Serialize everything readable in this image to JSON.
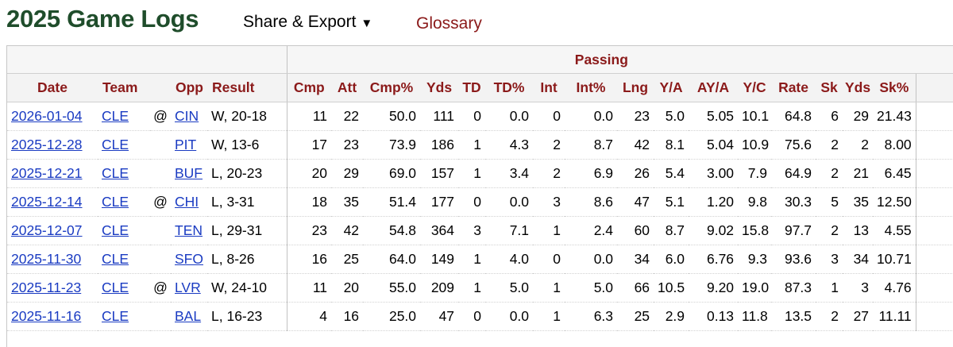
{
  "page": {
    "title": "2025 Game Logs",
    "share_export_label": "Share & Export",
    "share_caret": "▼",
    "glossary_label": "Glossary"
  },
  "table": {
    "group_label": "Passing",
    "columns": [
      "Date",
      "Team",
      "",
      "Opp",
      "Result",
      "Cmp",
      "Att",
      "Cmp%",
      "Yds",
      "TD",
      "TD%",
      "Int",
      "Int%",
      "Lng",
      "Y/A",
      "AY/A",
      "Y/C",
      "Rate",
      "Sk",
      "Yds",
      "Sk%"
    ],
    "rows": [
      [
        "2026-01-04",
        "CLE",
        "@",
        "CIN",
        "W, 20-18",
        "11",
        "22",
        "50.0",
        "111",
        "0",
        "0.0",
        "0",
        "0.0",
        "23",
        "5.0",
        "5.05",
        "10.1",
        "64.8",
        "6",
        "29",
        "21.43"
      ],
      [
        "2025-12-28",
        "CLE",
        "",
        "PIT",
        "W, 13-6",
        "17",
        "23",
        "73.9",
        "186",
        "1",
        "4.3",
        "2",
        "8.7",
        "42",
        "8.1",
        "5.04",
        "10.9",
        "75.6",
        "2",
        "2",
        "8.00"
      ],
      [
        "2025-12-21",
        "CLE",
        "",
        "BUF",
        "L, 20-23",
        "20",
        "29",
        "69.0",
        "157",
        "1",
        "3.4",
        "2",
        "6.9",
        "26",
        "5.4",
        "3.00",
        "7.9",
        "64.9",
        "2",
        "21",
        "6.45"
      ],
      [
        "2025-12-14",
        "CLE",
        "@",
        "CHI",
        "L, 3-31",
        "18",
        "35",
        "51.4",
        "177",
        "0",
        "0.0",
        "3",
        "8.6",
        "47",
        "5.1",
        "1.20",
        "9.8",
        "30.3",
        "5",
        "35",
        "12.50"
      ],
      [
        "2025-12-07",
        "CLE",
        "",
        "TEN",
        "L, 29-31",
        "23",
        "42",
        "54.8",
        "364",
        "3",
        "7.1",
        "1",
        "2.4",
        "60",
        "8.7",
        "9.02",
        "15.8",
        "97.7",
        "2",
        "13",
        "4.55"
      ],
      [
        "2025-11-30",
        "CLE",
        "",
        "SFO",
        "L, 8-26",
        "16",
        "25",
        "64.0",
        "149",
        "1",
        "4.0",
        "0",
        "0.0",
        "34",
        "6.0",
        "6.76",
        "9.3",
        "93.6",
        "3",
        "34",
        "10.71"
      ],
      [
        "2025-11-23",
        "CLE",
        "@",
        "LVR",
        "W, 24-10",
        "11",
        "20",
        "55.0",
        "209",
        "1",
        "5.0",
        "1",
        "5.0",
        "66",
        "10.5",
        "9.20",
        "19.0",
        "87.3",
        "1",
        "3",
        "4.76"
      ],
      [
        "2025-11-16",
        "CLE",
        "",
        "BAL",
        "L, 16-23",
        "4",
        "16",
        "25.0",
        "47",
        "0",
        "0.0",
        "1",
        "6.3",
        "25",
        "2.9",
        "0.13",
        "11.8",
        "13.5",
        "2",
        "27",
        "11.11"
      ]
    ]
  }
}
